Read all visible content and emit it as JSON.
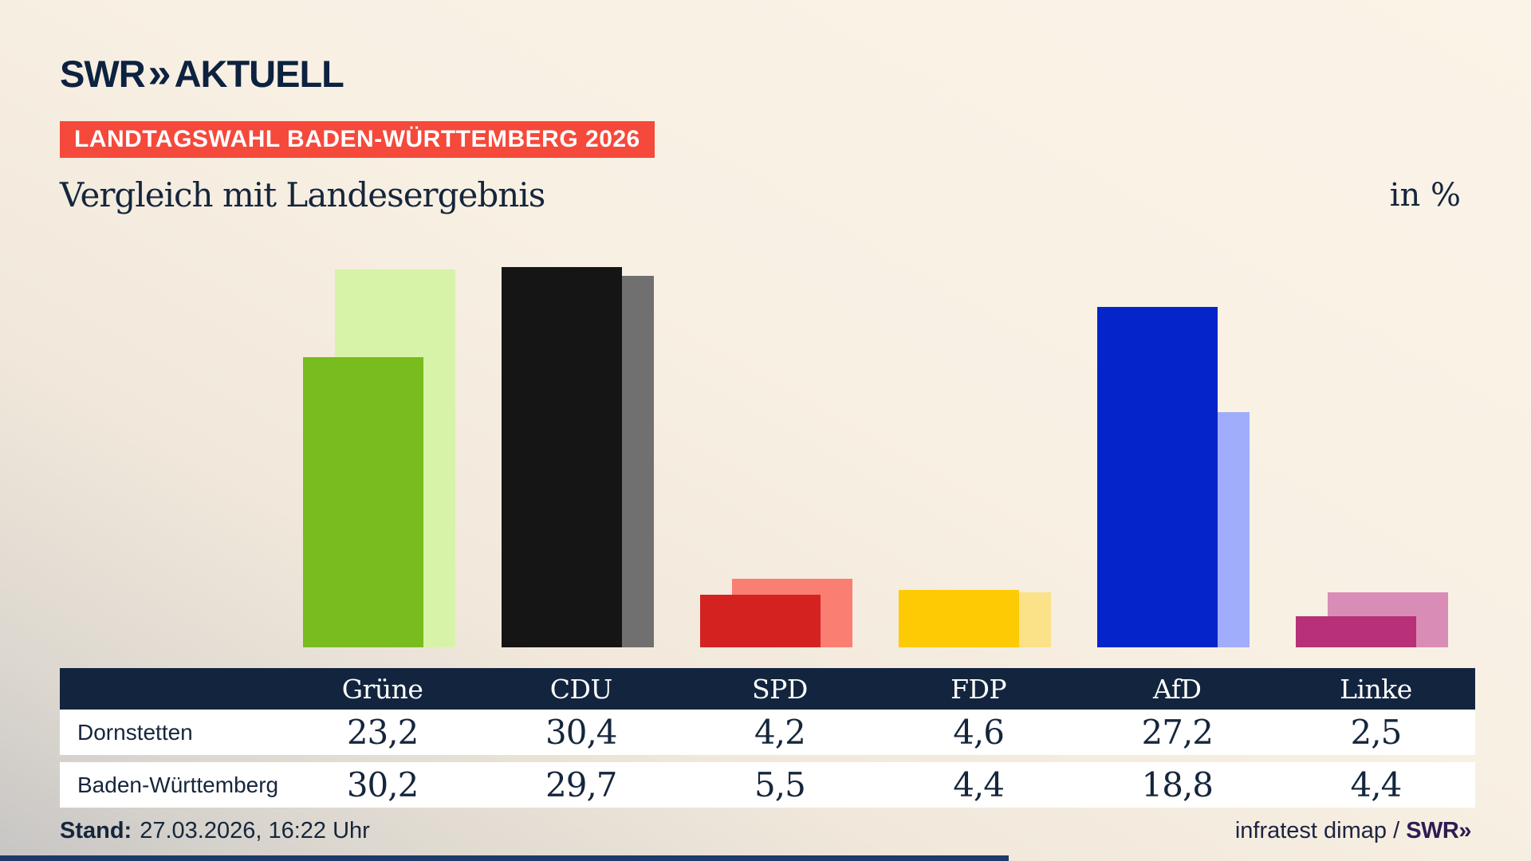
{
  "brand": {
    "logo_main": "SWR",
    "logo_chevrons": "»",
    "logo_suffix": "AKTUELL"
  },
  "badge": {
    "label": "LANDTAGSWAHL BADEN-WÜRTTEMBERG 2026",
    "bg": "#f5493b"
  },
  "title": "Vergleich mit Landesergebnis",
  "unit_label": "in %",
  "chart_data": {
    "type": "bar",
    "categories": [
      "Grüne",
      "CDU",
      "SPD",
      "FDP",
      "AfD",
      "Linke"
    ],
    "series": [
      {
        "name": "Dornstetten",
        "values": [
          23.2,
          30.4,
          4.2,
          4.6,
          27.2,
          2.5
        ]
      },
      {
        "name": "Baden-Württemberg",
        "values": [
          30.2,
          29.7,
          5.5,
          4.4,
          18.8,
          4.4
        ]
      }
    ],
    "colors_front": [
      "#78bc1e",
      "#151515",
      "#d42221",
      "#fdca04",
      "#0524ca",
      "#b73078"
    ],
    "colors_back": [
      "#d6f3a8",
      "#707070",
      "#fa7e72",
      "#fbe289",
      "#9fadfa",
      "#d98cb5"
    ],
    "title": "Vergleich mit Landesergebnis",
    "xlabel": "",
    "ylabel": "in %",
    "ylim": [
      0,
      32
    ],
    "grid": false,
    "legend": "table-below",
    "value_format": "comma-decimal"
  },
  "table": {
    "header": [
      "Grüne",
      "CDU",
      "SPD",
      "FDP",
      "AfD",
      "Linke"
    ],
    "rows": [
      {
        "label": "Dornstetten",
        "values": [
          "23,2",
          "30,4",
          "4,2",
          "4,6",
          "27,2",
          "2,5"
        ]
      },
      {
        "label": "Baden-Württemberg",
        "values": [
          "30,2",
          "29,7",
          "5,5",
          "4,4",
          "18,8",
          "4,4"
        ]
      }
    ],
    "header_bg": "#13253e"
  },
  "footer": {
    "stand_label": "Stand:",
    "stand_value": "27.03.2026, 16:22 Uhr",
    "source_text": "infratest dimap /",
    "source_brand": "SWR»"
  },
  "bottom_bar": {
    "color": "#1d3a69"
  }
}
